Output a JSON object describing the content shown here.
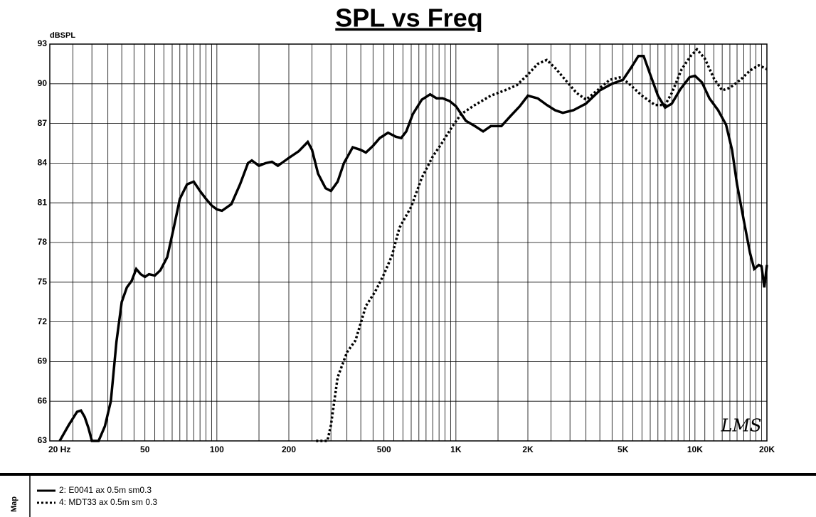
{
  "chart_data": {
    "type": "line",
    "title": "SPL vs Freq",
    "y_label": "dBSPL",
    "watermark": "LMS",
    "side_label": "Map",
    "log_x": true,
    "grid": true,
    "xlim": [
      20,
      20000
    ],
    "ylim": [
      63,
      93
    ],
    "xticks": [
      {
        "value": 20,
        "label": "20 Hz"
      },
      50,
      100,
      200,
      500,
      {
        "value": 1000,
        "label": "1K"
      },
      {
        "value": 2000,
        "label": "2K"
      },
      {
        "value": 5000,
        "label": "5K"
      },
      {
        "value": 10000,
        "label": "10K"
      },
      {
        "value": 20000,
        "label": "20K"
      }
    ],
    "xgrid": [
      25,
      30,
      35,
      40,
      45,
      55,
      60,
      65,
      70,
      75,
      80,
      85,
      90,
      95,
      150,
      250,
      300,
      350,
      400,
      450,
      550,
      600,
      650,
      700,
      750,
      800,
      850,
      900,
      950,
      1500,
      2500,
      3000,
      3500,
      4000,
      4500,
      5500,
      6000,
      6500,
      7000,
      7500,
      8000,
      8500,
      9000,
      9500,
      11000,
      12000,
      13000,
      14000,
      15000,
      16000,
      17000,
      18000,
      19000
    ],
    "yticks": [
      63,
      66,
      69,
      72,
      75,
      78,
      81,
      84,
      87,
      90,
      93
    ],
    "series": [
      {
        "name": "2: E0041 ax 0.5m sm0.3",
        "color": "#000000",
        "line_style": "solid",
        "x": [
          22,
          24,
          26,
          27,
          28,
          29,
          30,
          32,
          34,
          36,
          38,
          40,
          42,
          44,
          46,
          48,
          50,
          52,
          55,
          58,
          62,
          66,
          70,
          75,
          80,
          85,
          90,
          95,
          100,
          105,
          115,
          125,
          135,
          140,
          150,
          160,
          170,
          180,
          190,
          200,
          220,
          240,
          250,
          265,
          285,
          300,
          320,
          340,
          370,
          400,
          420,
          450,
          480,
          520,
          560,
          590,
          620,
          660,
          720,
          780,
          830,
          880,
          940,
          1000,
          1100,
          1200,
          1300,
          1400,
          1550,
          1700,
          1850,
          2000,
          2200,
          2400,
          2600,
          2800,
          3100,
          3500,
          4000,
          4500,
          5000,
          5400,
          5800,
          6100,
          6500,
          7000,
          7500,
          8000,
          8700,
          9500,
          10000,
          10700,
          11500,
          12500,
          13500,
          14300,
          15000,
          16000,
          17000,
          17700,
          18500,
          19000,
          19500,
          20000
        ],
        "values": [
          63.0,
          64.2,
          65.2,
          65.3,
          64.8,
          64.0,
          63.0,
          63.0,
          64.1,
          66.0,
          70.5,
          73.5,
          74.6,
          75.1,
          76.0,
          75.6,
          75.4,
          75.6,
          75.5,
          75.9,
          76.9,
          79.1,
          81.3,
          82.4,
          82.6,
          81.9,
          81.3,
          80.8,
          80.5,
          80.4,
          80.9,
          82.4,
          84.0,
          84.2,
          83.8,
          84.0,
          84.1,
          83.8,
          84.1,
          84.4,
          84.9,
          85.6,
          85.0,
          83.2,
          82.1,
          81.9,
          82.6,
          84.0,
          85.2,
          85.0,
          84.8,
          85.3,
          85.9,
          86.3,
          86.0,
          85.9,
          86.4,
          87.7,
          88.8,
          89.2,
          88.9,
          88.9,
          88.7,
          88.3,
          87.2,
          86.8,
          86.4,
          86.8,
          86.8,
          87.6,
          88.3,
          89.1,
          88.9,
          88.4,
          88.0,
          87.8,
          88.0,
          88.5,
          89.5,
          90.0,
          90.3,
          91.2,
          92.1,
          92.1,
          90.7,
          89.1,
          88.2,
          88.5,
          89.6,
          90.5,
          90.6,
          90.1,
          88.9,
          88.0,
          86.9,
          85.0,
          82.4,
          79.7,
          77.2,
          76.0,
          76.3,
          76.2,
          74.6,
          76.3
        ]
      },
      {
        "name": "4: MDT33 ax 0.5m sm 0.3",
        "color": "#000000",
        "line_style": "dotted",
        "x": [
          260,
          290,
          300,
          320,
          350,
          380,
          420,
          460,
          500,
          540,
          580,
          650,
          720,
          800,
          880,
          960,
          1050,
          1200,
          1400,
          1600,
          1800,
          2000,
          2200,
          2400,
          2600,
          2900,
          3200,
          3500,
          3900,
          4400,
          4900,
          5300,
          6000,
          6800,
          7500,
          8000,
          8800,
          9600,
          10200,
          11000,
          12000,
          13000,
          14000,
          15500,
          17000,
          18500,
          20000
        ],
        "values": [
          63.0,
          63.0,
          64.2,
          67.8,
          69.7,
          70.6,
          73.2,
          74.3,
          75.6,
          77.0,
          79.1,
          80.7,
          82.9,
          84.5,
          85.6,
          86.7,
          87.7,
          88.4,
          89.1,
          89.5,
          89.9,
          90.7,
          91.5,
          91.8,
          91.2,
          90.2,
          89.3,
          88.8,
          89.5,
          90.3,
          90.5,
          90.0,
          89.1,
          88.4,
          88.4,
          89.3,
          91.1,
          92.1,
          92.6,
          91.9,
          90.4,
          89.5,
          89.7,
          90.3,
          91.0,
          91.4,
          91.1
        ]
      }
    ]
  }
}
